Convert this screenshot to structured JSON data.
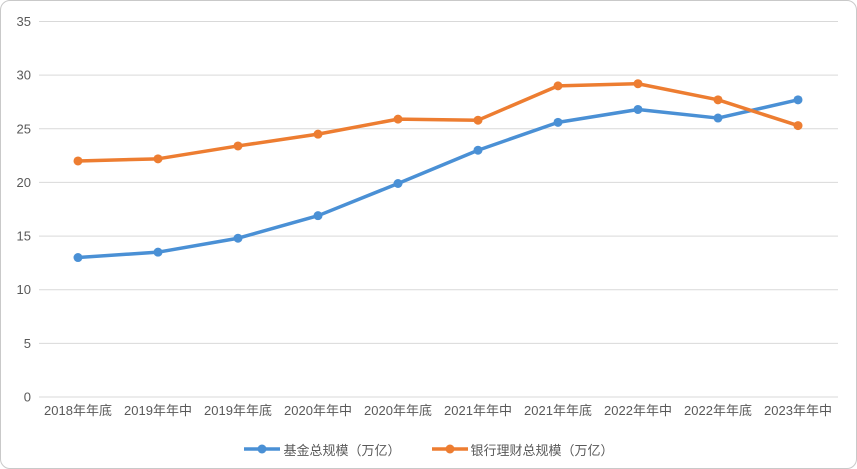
{
  "chart_data": {
    "type": "line",
    "title": "",
    "xlabel": "",
    "ylabel": "",
    "categories": [
      "2018年年底",
      "2019年年中",
      "2019年年底",
      "2020年年中",
      "2020年年底",
      "2021年年中",
      "2021年年底",
      "2022年年中",
      "2022年年底",
      "2023年年中"
    ],
    "series": [
      {
        "name": "基金总规模（万亿）",
        "color": "#4A90D5",
        "marker": "circle",
        "values": [
          13.0,
          13.5,
          14.8,
          16.9,
          19.9,
          23.0,
          25.6,
          26.8,
          26.0,
          27.7
        ]
      },
      {
        "name": "银行理财总规模（万亿）",
        "color": "#ED7D31",
        "marker": "circle",
        "values": [
          22.0,
          22.2,
          23.4,
          24.5,
          25.9,
          25.8,
          29.0,
          29.2,
          27.7,
          25.3
        ]
      }
    ],
    "ylim": [
      0,
      35
    ],
    "ytick_step": 5,
    "yticks": [
      0,
      5,
      10,
      15,
      20,
      25,
      30,
      35
    ],
    "grid": true,
    "legend_position": "bottom",
    "axis_label_color": "#595959",
    "gridline_color": "#D9D9D9"
  },
  "frame": {
    "background": "#FFFFFF",
    "border_color": "#C9C9C9"
  }
}
